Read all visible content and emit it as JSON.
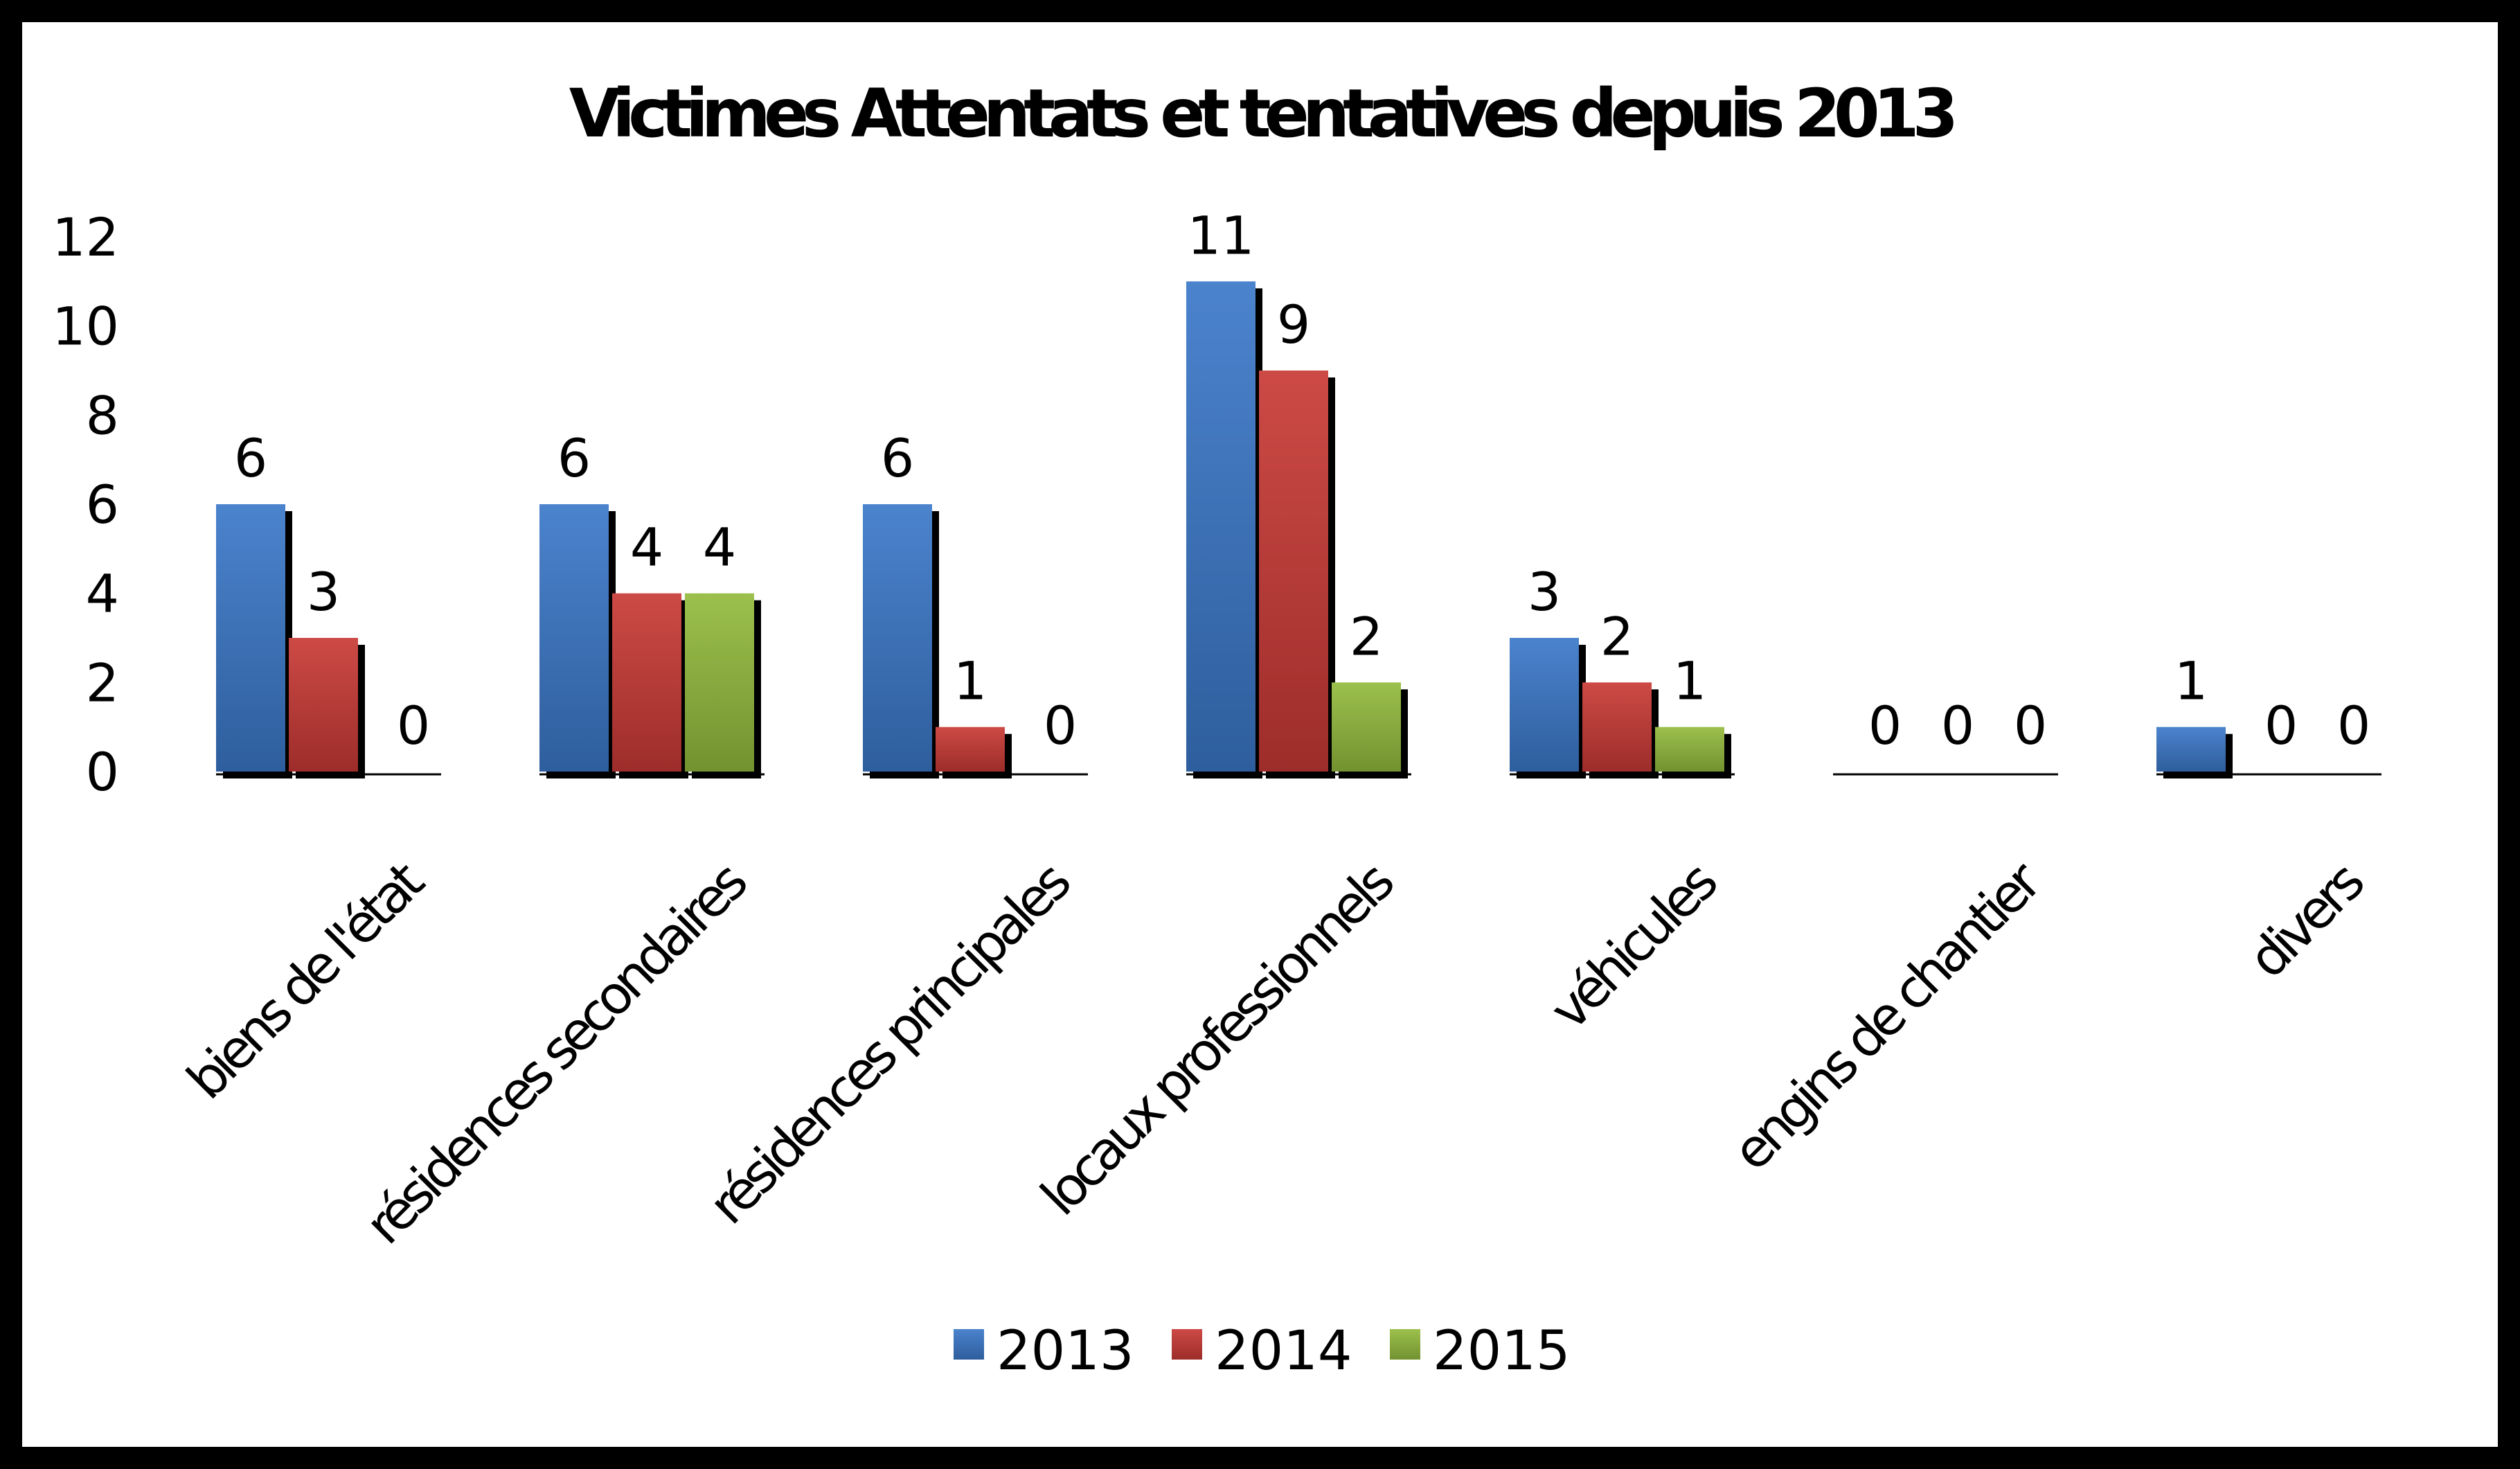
{
  "chart_data": {
    "type": "bar",
    "title": "Victimes Attentats et tentatives depuis 2013",
    "categories": [
      "biens de l'état",
      "résidences secondaires",
      "résidences principales",
      "locaux professionnels",
      "véhicules",
      "engins de chantier",
      "divers"
    ],
    "series": [
      {
        "name": "2013",
        "color": "#3b78c9",
        "values": [
          6,
          6,
          6,
          11,
          3,
          0,
          1
        ]
      },
      {
        "name": "2014",
        "color": "#c93a36",
        "values": [
          3,
          4,
          1,
          9,
          2,
          0,
          0
        ]
      },
      {
        "name": "2015",
        "color": "#93bb3e",
        "values": [
          0,
          4,
          0,
          2,
          1,
          0,
          0
        ]
      }
    ],
    "yticks": [
      0,
      2,
      4,
      6,
      8,
      10,
      12
    ],
    "ylim": [
      0,
      12
    ],
    "data_labels": true,
    "grid": false,
    "legend_position": "bottom",
    "style": "3d-shadowed"
  }
}
